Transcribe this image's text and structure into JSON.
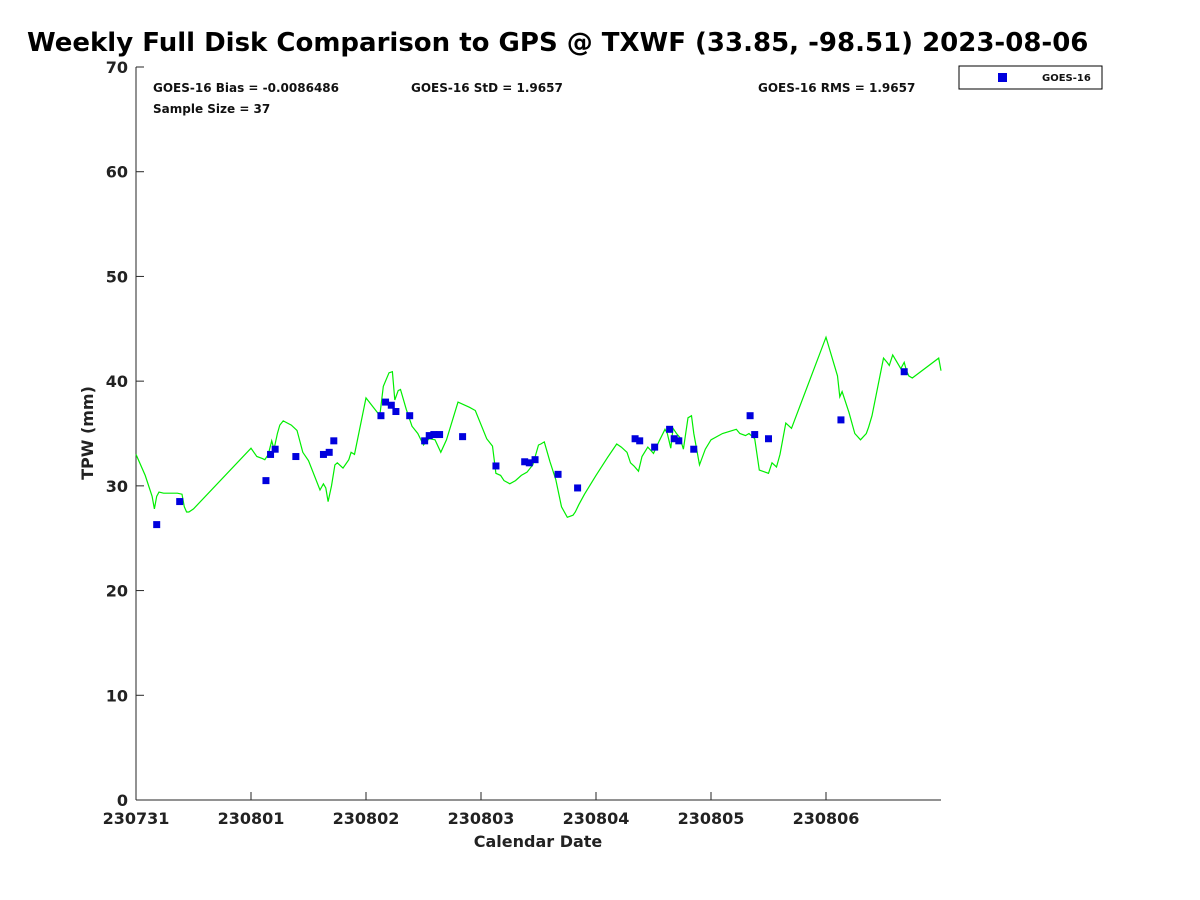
{
  "chart_data": {
    "type": "scatter",
    "title": "Weekly Full Disk Comparison to GPS @ TXWF (33.85, -98.51) 2023-08-06",
    "xlabel": "Calendar Date",
    "ylabel": "TPW (mm)",
    "xlim": [
      0,
      7
    ],
    "ylim": [
      0,
      70
    ],
    "x_ticks": [
      0,
      1,
      2,
      3,
      4,
      5,
      6
    ],
    "x_tick_labels": [
      "230731",
      "230801",
      "230802",
      "230803",
      "230804",
      "230805",
      "230806"
    ],
    "y_ticks": [
      0,
      10,
      20,
      30,
      40,
      50,
      60,
      70
    ],
    "y_tick_labels": [
      "0",
      "10",
      "20",
      "30",
      "40",
      "50",
      "60",
      "70"
    ],
    "grid": false,
    "legend_position": "top-right",
    "stats": {
      "bias": "GOES-16 Bias = -0.0086486",
      "std": "GOES-16 StD = 1.9657",
      "rms": "GOES-16 RMS = 1.9657",
      "sample_size": "Sample Size = 37"
    },
    "series": [
      {
        "name": "GOES-16",
        "kind": "scatter",
        "marker": "square",
        "color": "#0000dd",
        "x": [
          0.18,
          0.38,
          1.13,
          1.17,
          1.21,
          1.39,
          1.63,
          1.68,
          1.72,
          2.13,
          2.17,
          2.22,
          2.26,
          2.38,
          2.51,
          2.55,
          2.59,
          2.64,
          2.84,
          3.13,
          3.38,
          3.42,
          3.47,
          3.67,
          3.84,
          4.34,
          4.38,
          4.51,
          4.64,
          4.68,
          4.72,
          4.85,
          5.34,
          5.38,
          5.5,
          6.13,
          6.68
        ],
        "y": [
          26.3,
          28.5,
          30.5,
          33.0,
          33.5,
          32.8,
          33.0,
          33.2,
          34.3,
          36.7,
          38.0,
          37.7,
          37.1,
          36.7,
          34.3,
          34.8,
          34.9,
          34.9,
          34.7,
          31.9,
          32.3,
          32.2,
          32.5,
          31.1,
          29.8,
          34.5,
          34.3,
          33.7,
          35.4,
          34.5,
          34.3,
          33.5,
          36.7,
          34.9,
          34.5,
          36.3,
          40.9
        ]
      },
      {
        "kind": "line",
        "color": "#00ee00",
        "x": [
          0.0,
          0.08,
          0.14,
          0.16,
          0.18,
          0.2,
          0.24,
          0.3,
          0.36,
          0.4,
          0.42,
          0.44,
          0.46,
          0.5,
          1.0,
          1.05,
          1.1,
          1.12,
          1.15,
          1.18,
          1.2,
          1.23,
          1.25,
          1.28,
          1.35,
          1.4,
          1.45,
          1.5,
          1.6,
          1.63,
          1.65,
          1.67,
          1.7,
          1.73,
          1.75,
          1.8,
          1.85,
          1.87,
          1.9,
          2.0,
          2.1,
          2.12,
          2.15,
          2.2,
          2.23,
          2.25,
          2.28,
          2.3,
          2.35,
          2.4,
          2.45,
          2.5,
          2.52,
          2.55,
          2.6,
          2.65,
          2.7,
          2.8,
          2.9,
          2.95,
          3.05,
          3.1,
          3.13,
          3.17,
          3.2,
          3.25,
          3.3,
          3.35,
          3.4,
          3.45,
          3.5,
          3.52,
          3.55,
          3.6,
          3.65,
          3.7,
          3.75,
          3.8,
          3.82,
          3.85,
          3.9,
          4.0,
          4.1,
          4.18,
          4.22,
          4.27,
          4.3,
          4.33,
          4.37,
          4.4,
          4.45,
          4.5,
          4.55,
          4.6,
          4.62,
          4.65,
          4.67,
          4.7,
          4.73,
          4.76,
          4.8,
          4.83,
          4.85,
          4.9,
          4.95,
          5.0,
          5.1,
          5.22,
          5.25,
          5.3,
          5.33,
          5.38,
          5.42,
          5.5,
          5.53,
          5.57,
          5.6,
          5.65,
          5.7,
          6.0,
          6.1,
          6.12,
          6.14,
          6.2,
          6.25,
          6.3,
          6.35,
          6.37,
          6.4,
          6.5,
          6.53,
          6.55,
          6.58,
          6.65,
          6.68,
          6.7,
          6.72,
          6.75,
          6.98,
          7.0
        ],
        "y": [
          33.0,
          31.0,
          29.0,
          27.8,
          29.0,
          29.4,
          29.3,
          29.3,
          29.3,
          29.2,
          28.0,
          27.5,
          27.5,
          27.8,
          33.6,
          32.8,
          32.6,
          32.5,
          33.0,
          34.3,
          33.5,
          35.0,
          35.8,
          36.2,
          35.8,
          35.3,
          33.2,
          32.4,
          29.6,
          30.2,
          29.8,
          28.5,
          30.0,
          32.0,
          32.2,
          31.7,
          32.5,
          33.2,
          33.0,
          38.4,
          37.0,
          36.7,
          39.5,
          40.8,
          40.9,
          38.2,
          39.1,
          39.2,
          37.3,
          35.7,
          35.0,
          33.9,
          34.2,
          34.5,
          34.4,
          33.2,
          34.4,
          38.0,
          37.5,
          37.2,
          34.5,
          33.8,
          31.2,
          31.0,
          30.5,
          30.2,
          30.5,
          31.0,
          31.3,
          32.0,
          33.9,
          34.0,
          34.2,
          32.3,
          30.6,
          28.0,
          27.0,
          27.2,
          27.5,
          28.2,
          29.2,
          31.0,
          32.7,
          34.0,
          33.7,
          33.2,
          32.2,
          31.9,
          31.4,
          32.8,
          33.7,
          33.1,
          34.3,
          35.4,
          35.0,
          33.6,
          35.5,
          35.0,
          34.6,
          33.5,
          36.5,
          36.7,
          35.0,
          32.0,
          33.5,
          34.4,
          35.0,
          35.4,
          35.0,
          34.8,
          35.0,
          34.5,
          31.5,
          31.2,
          32.2,
          31.8,
          33.0,
          36.0,
          35.5,
          44.2,
          40.5,
          38.5,
          39.0,
          37.0,
          35.0,
          34.4,
          35.0,
          35.6,
          36.7,
          42.2,
          41.8,
          41.5,
          42.5,
          41.2,
          41.8,
          41.0,
          40.5,
          40.3,
          42.2,
          41.0
        ]
      }
    ]
  }
}
